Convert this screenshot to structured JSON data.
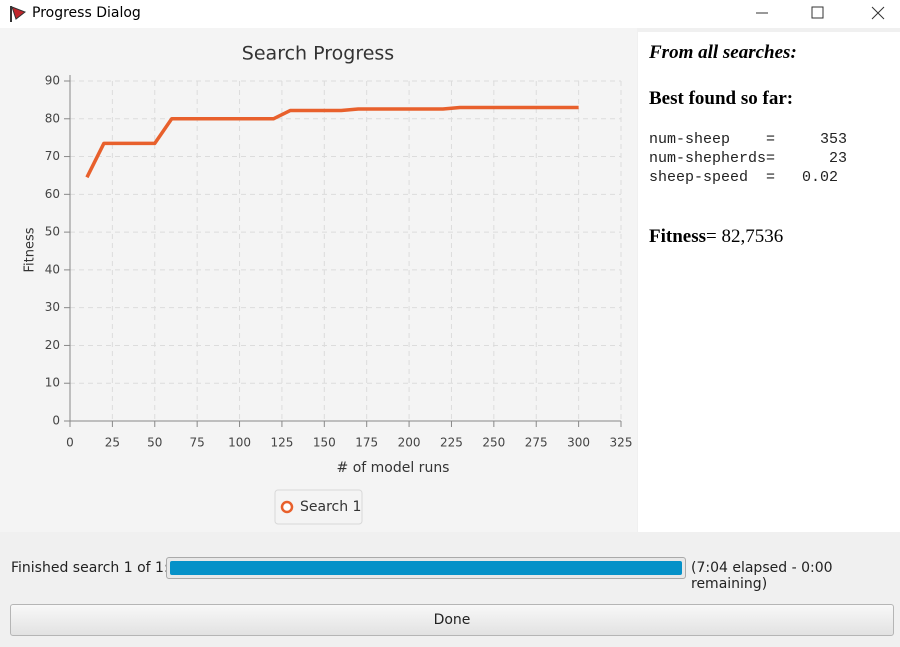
{
  "window": {
    "title": "Progress Dialog"
  },
  "chart_data": {
    "type": "line",
    "title": "Search Progress",
    "x_label": "# of model runs",
    "y_label": "Fitness",
    "x": [
      10,
      20,
      50,
      60,
      120,
      130,
      160,
      170,
      220,
      230,
      300
    ],
    "series": [
      {
        "name": "Search 1",
        "color": "#e8602c",
        "values": [
          64.5,
          73.5,
          73.5,
          80,
          80,
          82.2,
          82.2,
          82.6,
          82.6,
          83,
          83
        ]
      }
    ],
    "xlim": [
      0,
      325
    ],
    "xticks": [
      0,
      25,
      50,
      75,
      100,
      125,
      150,
      175,
      200,
      225,
      250,
      275,
      300,
      325
    ],
    "ylim": [
      0,
      90
    ],
    "yticks": [
      0,
      10,
      20,
      30,
      40,
      50,
      60,
      70,
      80,
      90
    ],
    "grid": true
  },
  "results": {
    "heading": "From all searches:",
    "subheading": "Best found so far:",
    "params": [
      "num-sheep    =     353",
      "num-shepherds=      23",
      "sheep-speed  =   0.02"
    ],
    "fitness_label": "Fitness",
    "fitness_value": "= 82,7536"
  },
  "status": {
    "label": "Finished search 1 of 1:",
    "time": "(7:04 elapsed - 0:00 remaining)"
  },
  "button": {
    "label": "Done"
  }
}
